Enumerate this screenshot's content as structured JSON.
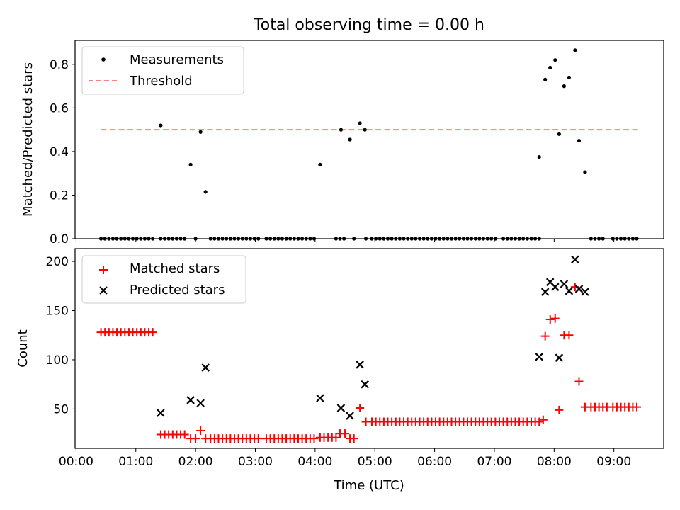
{
  "title": "Total observing time = 0.00 h",
  "colors": {
    "measurement": "#000000",
    "threshold": "#ff7f7f",
    "matched": "#ff0000",
    "predicted": "#000000"
  },
  "chart_data": [
    {
      "type": "scatter",
      "ylabel": "Matched/Predicted stars",
      "ylim": [
        0,
        0.91
      ],
      "yticks": [
        "0.0",
        "0.2",
        "0.4",
        "0.6",
        "0.8"
      ],
      "ytick_values": [
        0,
        0.2,
        0.4,
        0.6,
        0.8
      ],
      "legend": {
        "position": "top-left",
        "entries": [
          "Measurements",
          "Threshold"
        ]
      },
      "threshold": {
        "value": 0.5,
        "x_range": [
          "00:25",
          "09:25"
        ]
      },
      "series": [
        {
          "name": "Measurements",
          "marker": "dot",
          "x": [
            "00:25",
            "00:29",
            "00:33",
            "00:37",
            "00:41",
            "00:45",
            "00:49",
            "00:53",
            "00:57",
            "01:01",
            "01:05",
            "01:09",
            "01:13",
            "01:17",
            "01:25",
            "01:29",
            "01:33",
            "01:37",
            "01:41",
            "01:45",
            "01:49",
            "02:00",
            "02:15",
            "02:19",
            "02:23",
            "02:27",
            "02:31",
            "02:35",
            "02:39",
            "02:43",
            "02:47",
            "02:51",
            "02:55",
            "02:59",
            "03:03",
            "03:11",
            "03:15",
            "03:19",
            "03:23",
            "03:27",
            "03:31",
            "03:35",
            "03:39",
            "03:43",
            "03:47",
            "03:51",
            "03:55",
            "03:59",
            "04:21",
            "04:25",
            "04:29",
            "04:39",
            "04:51",
            "04:57",
            "05:01",
            "05:05",
            "05:09",
            "05:13",
            "05:17",
            "05:21",
            "05:25",
            "05:29",
            "05:33",
            "05:37",
            "05:41",
            "05:45",
            "05:49",
            "05:53",
            "05:57",
            "06:01",
            "06:05",
            "06:09",
            "06:13",
            "06:17",
            "06:21",
            "06:25",
            "06:29",
            "06:33",
            "06:37",
            "06:41",
            "06:45",
            "06:49",
            "06:53",
            "06:57",
            "07:01",
            "07:09",
            "07:13",
            "07:17",
            "07:21",
            "07:25",
            "07:29",
            "07:33",
            "07:37",
            "07:41",
            "07:45",
            "08:37",
            "08:41",
            "08:45",
            "08:49",
            "08:59",
            "09:03",
            "09:07",
            "09:11",
            "09:15",
            "09:19",
            "09:23",
            "01:25",
            "01:55",
            "02:05",
            "02:10",
            "04:05",
            "04:26",
            "04:35",
            "04:45",
            "04:50",
            "07:45",
            "07:51",
            "07:56",
            "08:01",
            "08:05",
            "08:10",
            "08:15",
            "08:21",
            "08:25",
            "08:31"
          ],
          "y": [
            0,
            0,
            0,
            0,
            0,
            0,
            0,
            0,
            0,
            0,
            0,
            0,
            0,
            0,
            0,
            0,
            0,
            0,
            0,
            0,
            0,
            0,
            0,
            0,
            0,
            0,
            0,
            0,
            0,
            0,
            0,
            0,
            0,
            0,
            0,
            0,
            0,
            0,
            0,
            0,
            0,
            0,
            0,
            0,
            0,
            0,
            0,
            0,
            0,
            0,
            0,
            0,
            0,
            0,
            0,
            0,
            0,
            0,
            0,
            0,
            0,
            0,
            0,
            0,
            0,
            0,
            0,
            0,
            0,
            0,
            0,
            0,
            0,
            0,
            0,
            0,
            0,
            0,
            0,
            0,
            0,
            0,
            0,
            0,
            0,
            0,
            0,
            0,
            0,
            0,
            0,
            0,
            0,
            0,
            0,
            0,
            0,
            0,
            0,
            0,
            0,
            0,
            0,
            0,
            0,
            0,
            0.52,
            0.34,
            0.49,
            0.215,
            0.34,
            0.5,
            0.455,
            0.53,
            0.5,
            0.375,
            0.73,
            0.785,
            0.82,
            0.48,
            0.7,
            0.74,
            0.865,
            0.45,
            0.305
          ]
        }
      ]
    },
    {
      "type": "scatter",
      "xlabel": "Time (UTC)",
      "ylabel": "Count",
      "xlim": [
        "-00:01",
        "09:50"
      ],
      "xticks": [
        "00:00",
        "01:00",
        "02:00",
        "03:00",
        "04:00",
        "05:00",
        "06:00",
        "07:00",
        "08:00",
        "09:00"
      ],
      "ylim": [
        10,
        213
      ],
      "yticks": [
        "50",
        "100",
        "150",
        "200"
      ],
      "ytick_values": [
        50,
        100,
        150,
        200
      ],
      "legend": {
        "position": "top-left",
        "entries": [
          "Matched stars",
          "Predicted stars"
        ]
      },
      "series": [
        {
          "name": "Matched stars",
          "marker": "plus",
          "x": [
            "00:25",
            "00:29",
            "00:33",
            "00:37",
            "00:41",
            "00:45",
            "00:49",
            "00:53",
            "00:57",
            "01:01",
            "01:05",
            "01:09",
            "01:13",
            "01:17",
            "01:25",
            "01:29",
            "01:33",
            "01:37",
            "01:41",
            "01:45",
            "01:49",
            "01:55",
            "02:00",
            "02:05",
            "02:10",
            "02:15",
            "02:19",
            "02:23",
            "02:27",
            "02:31",
            "02:35",
            "02:39",
            "02:43",
            "02:47",
            "02:51",
            "02:55",
            "02:59",
            "03:03",
            "03:11",
            "03:15",
            "03:19",
            "03:23",
            "03:27",
            "03:31",
            "03:35",
            "03:39",
            "03:43",
            "03:47",
            "03:51",
            "03:55",
            "03:59",
            "04:05",
            "04:09",
            "04:13",
            "04:17",
            "04:21",
            "04:25",
            "04:30",
            "04:35",
            "04:39",
            "04:45",
            "04:51",
            "04:57",
            "05:01",
            "05:05",
            "05:09",
            "05:13",
            "05:17",
            "05:21",
            "05:25",
            "05:29",
            "05:33",
            "05:37",
            "05:41",
            "05:45",
            "05:49",
            "05:53",
            "05:57",
            "06:01",
            "06:05",
            "06:09",
            "06:13",
            "06:17",
            "06:21",
            "06:25",
            "06:29",
            "06:33",
            "06:37",
            "06:41",
            "06:45",
            "06:49",
            "06:53",
            "06:57",
            "07:01",
            "07:05",
            "07:09",
            "07:13",
            "07:17",
            "07:21",
            "07:25",
            "07:29",
            "07:33",
            "07:37",
            "07:41",
            "07:45",
            "07:49",
            "07:51",
            "07:56",
            "08:01",
            "08:05",
            "08:10",
            "08:15",
            "08:21",
            "08:25",
            "08:31",
            "08:37",
            "08:41",
            "08:45",
            "08:49",
            "08:53",
            "08:59",
            "09:03",
            "09:07",
            "09:11",
            "09:15",
            "09:19",
            "09:23"
          ],
          "y": [
            128,
            128,
            128,
            128,
            128,
            128,
            128,
            128,
            128,
            128,
            128,
            128,
            128,
            128,
            24,
            24,
            24,
            24,
            24,
            24,
            24,
            20,
            20,
            28,
            20,
            20,
            20,
            20,
            20,
            20,
            20,
            20,
            20,
            20,
            20,
            20,
            20,
            20,
            20,
            20,
            20,
            20,
            20,
            20,
            20,
            20,
            20,
            20,
            20,
            20,
            20,
            21,
            21,
            21,
            21,
            21,
            25,
            25,
            20,
            20,
            51,
            37,
            37,
            37,
            37,
            37,
            37,
            37,
            37,
            37,
            37,
            37,
            37,
            37,
            37,
            37,
            37,
            37,
            37,
            37,
            37,
            37,
            37,
            37,
            37,
            37,
            37,
            37,
            37,
            37,
            37,
            37,
            37,
            37,
            37,
            37,
            37,
            37,
            37,
            37,
            37,
            37,
            37,
            37,
            37,
            39,
            124,
            141,
            142,
            49,
            125,
            125,
            174,
            78,
            52,
            52,
            52,
            52,
            52,
            52,
            52,
            52,
            52,
            52,
            52,
            52,
            52
          ]
        },
        {
          "name": "Predicted stars",
          "marker": "x",
          "x": [
            "01:25",
            "01:55",
            "02:05",
            "02:10",
            "04:05",
            "04:26",
            "04:35",
            "04:45",
            "04:50",
            "07:45",
            "07:51",
            "07:56",
            "08:01",
            "08:05",
            "08:10",
            "08:15",
            "08:21",
            "08:25",
            "08:31"
          ],
          "y": [
            46,
            59,
            56,
            92,
            61,
            51,
            43,
            95,
            75,
            103,
            169,
            179,
            174,
            102,
            177,
            170,
            202,
            172,
            169
          ]
        }
      ]
    }
  ]
}
